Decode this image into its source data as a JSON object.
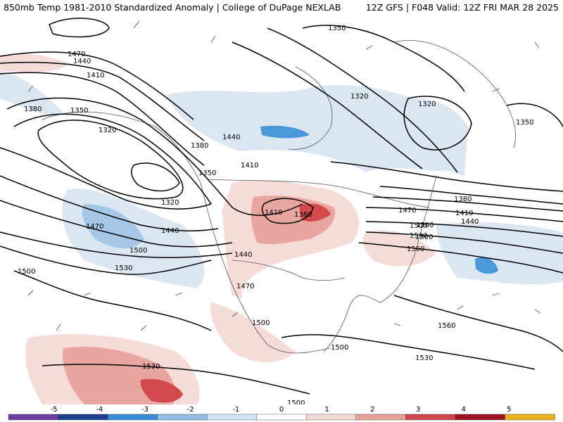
{
  "header": {
    "left_title": "850mb Temp 1981-2010 Standardized Anomaly | College of DuPage NEXLAB",
    "right_title": "12Z GFS | F048 Valid: 12Z FRI MAR 28 2025"
  },
  "map": {
    "product": "850mb temperature standardized anomaly with geopotential height contours",
    "contour_labels": [
      "1470",
      "1440",
      "1410",
      "1380",
      "1350",
      "1320",
      "1380",
      "1440",
      "1410",
      "1350",
      "1320",
      "1470",
      "1440",
      "1500",
      "1530",
      "1500",
      "1350",
      "1320",
      "1320",
      "1350",
      "1410",
      "1380",
      "1440",
      "1470",
      "1500",
      "1500",
      "1530",
      "1560",
      "1380",
      "1410",
      "1440",
      "1470",
      "1500",
      "1560",
      "1530",
      "1500",
      "1500",
      "1530",
      "1500"
    ],
    "colors": {
      "anomaly_negative_light": "#dbe6f3",
      "anomaly_negative_mid": "#a6c8e8",
      "anomaly_negative_strong": "#4a98d6",
      "anomaly_positive_light": "#f6dcd8",
      "anomaly_positive_mid": "#e9a6a1",
      "anomaly_positive_strong": "#d1494a",
      "anomaly_positive_extreme": "#a1101c",
      "contour": "#000000",
      "borders": "#555555"
    }
  },
  "colorbar": {
    "ticks": [
      "-5",
      "-4",
      "-3",
      "-2",
      "-1",
      "0",
      "1",
      "2",
      "3",
      "4",
      "5"
    ],
    "colors": [
      "#6b3fa0",
      "#1f3f8f",
      "#3a8bd3",
      "#92bde4",
      "#d3e4f4",
      "#ffffff",
      "#f3d9d5",
      "#e6a09a",
      "#d0454a",
      "#9c1020",
      "#e8b020"
    ]
  }
}
